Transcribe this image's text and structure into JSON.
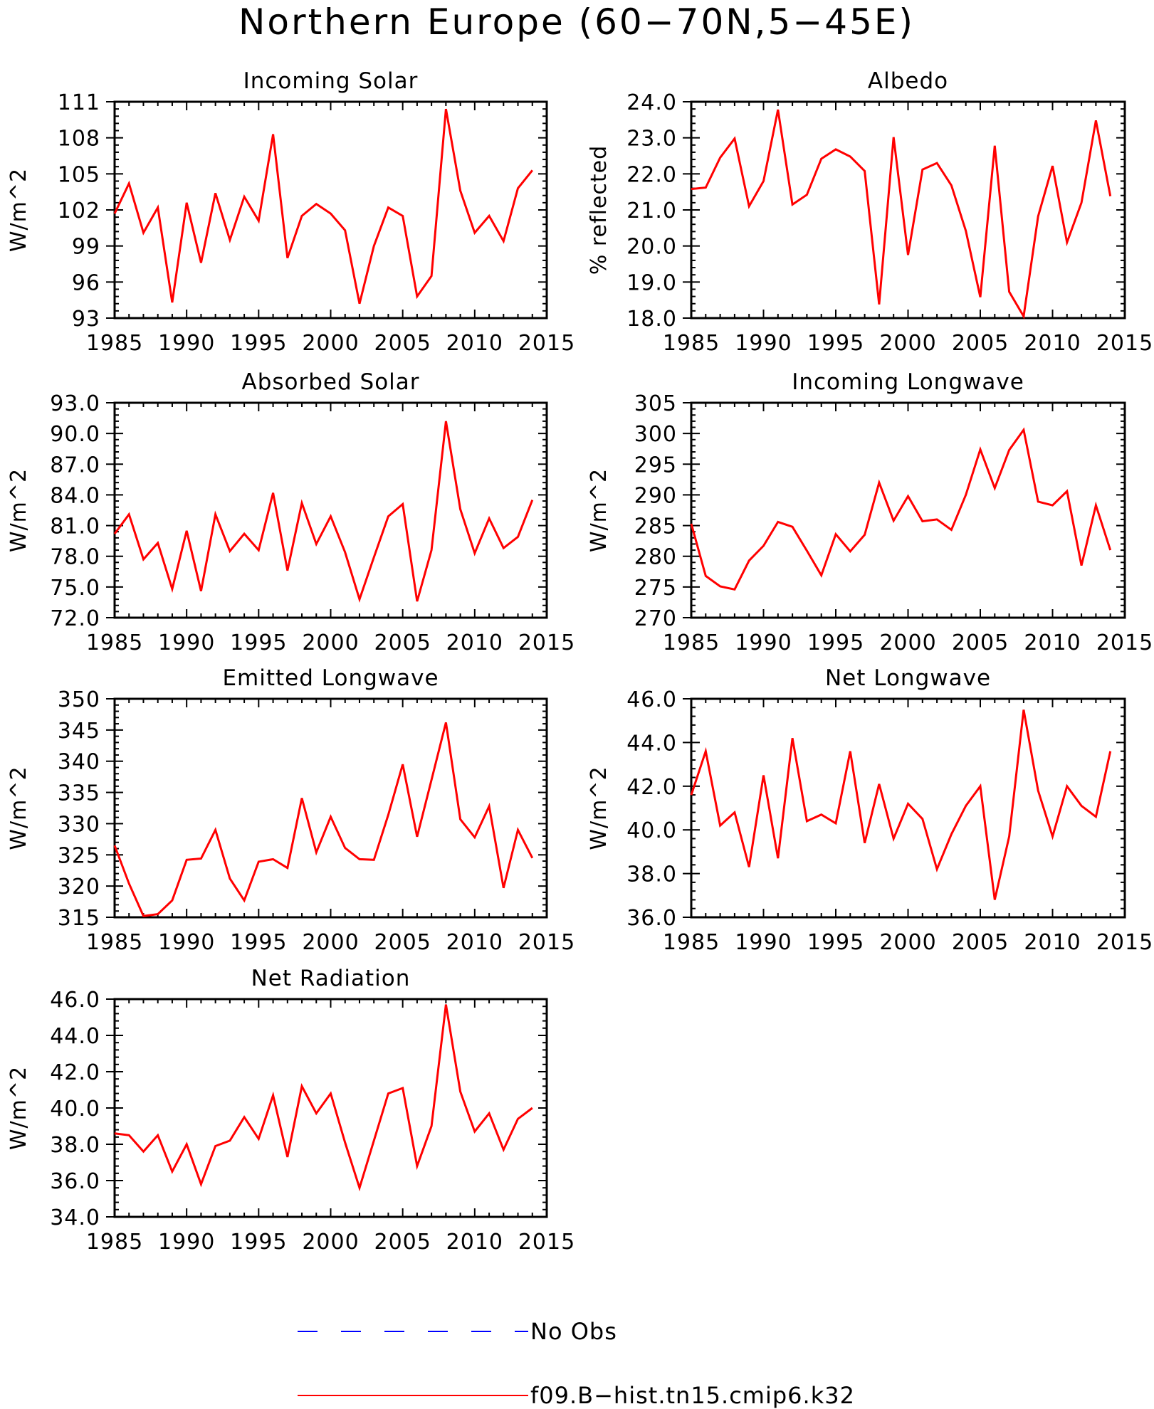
{
  "title": "Northern Europe (60−70N,5−45E)",
  "colors": {
    "model": "#ff0000",
    "obs": "#0000ff",
    "axis": "#000000"
  },
  "legend": {
    "entries": [
      {
        "label": "No Obs",
        "color": "#0000ff",
        "dash": "dashed"
      },
      {
        "label": "f09.B−hist.tn15.cmip6.k32",
        "color": "#ff0000",
        "dash": "solid"
      }
    ]
  },
  "chart_data": [
    {
      "type": "line",
      "title": "Incoming Solar",
      "ylabel": "W/m^2",
      "xlim": [
        1985,
        2015
      ],
      "ylim": [
        93,
        111
      ],
      "xticks": [
        "1985",
        "1990",
        "1995",
        "2000",
        "2005",
        "2010",
        "2015"
      ],
      "yticks": [
        "93",
        "96",
        "99",
        "102",
        "105",
        "108",
        "111"
      ],
      "series": [
        {
          "x": [
            1985,
            1986,
            1987,
            1988,
            1989,
            1990,
            1991,
            1992,
            1993,
            1994,
            1995,
            1996,
            1997,
            1998,
            1999,
            2000,
            2001,
            2002,
            2003,
            2004,
            2005,
            2006,
            2007,
            2008,
            2009,
            2010,
            2011,
            2012,
            2013,
            2014
          ],
          "values": [
            101.7,
            104.2,
            100.1,
            102.2,
            94.3,
            102.6,
            97.6,
            103.4,
            99.5,
            103.1,
            101.1,
            108.3,
            98.0,
            101.5,
            102.5,
            101.7,
            100.3,
            94.2,
            99.0,
            102.2,
            101.5,
            94.8,
            96.5,
            110.4,
            103.6,
            100.1,
            101.5,
            99.4,
            103.8,
            105.3
          ]
        }
      ]
    },
    {
      "type": "line",
      "title": "Albedo",
      "ylabel": "% reflected",
      "xlim": [
        1985,
        2015
      ],
      "ylim": [
        18.0,
        24.0
      ],
      "xticks": [
        "1985",
        "1990",
        "1995",
        "2000",
        "2005",
        "2010",
        "2015"
      ],
      "yticks": [
        "18.0",
        "19.0",
        "20.0",
        "21.0",
        "22.0",
        "23.0",
        "24.0"
      ],
      "series": [
        {
          "x": [
            1985,
            1986,
            1987,
            1988,
            1989,
            1990,
            1991,
            1992,
            1993,
            1994,
            1995,
            1996,
            1997,
            1998,
            1999,
            2000,
            2001,
            2002,
            2003,
            2004,
            2005,
            2006,
            2007,
            2008,
            2009,
            2010,
            2011,
            2012,
            2013,
            2014
          ],
          "values": [
            21.58,
            21.62,
            22.45,
            22.98,
            21.1,
            21.8,
            23.78,
            21.15,
            21.42,
            22.42,
            22.68,
            22.48,
            22.08,
            18.38,
            23.02,
            19.75,
            22.12,
            22.3,
            21.68,
            20.42,
            18.58,
            22.78,
            18.73,
            18.05,
            20.82,
            22.22,
            20.1,
            21.2,
            23.48,
            21.38
          ]
        }
      ]
    },
    {
      "type": "line",
      "title": "Absorbed Solar",
      "ylabel": "W/m^2",
      "xlim": [
        1985,
        2015
      ],
      "ylim": [
        72.0,
        93.0
      ],
      "xticks": [
        "1985",
        "1990",
        "1995",
        "2000",
        "2005",
        "2010",
        "2015"
      ],
      "yticks": [
        "72.0",
        "75.0",
        "78.0",
        "81.0",
        "84.0",
        "87.0",
        "90.0",
        "93.0"
      ],
      "series": [
        {
          "x": [
            1985,
            1986,
            1987,
            1988,
            1989,
            1990,
            1991,
            1992,
            1993,
            1994,
            1995,
            1996,
            1997,
            1998,
            1999,
            2000,
            2001,
            2002,
            2003,
            2004,
            2005,
            2006,
            2007,
            2008,
            2009,
            2010,
            2011,
            2012,
            2013,
            2014
          ],
          "values": [
            80.2,
            82.1,
            77.7,
            79.3,
            74.8,
            80.5,
            74.6,
            82.1,
            78.5,
            80.2,
            78.6,
            84.2,
            76.6,
            83.2,
            79.2,
            81.9,
            78.4,
            73.8,
            77.9,
            81.9,
            83.1,
            73.6,
            78.6,
            91.2,
            82.6,
            78.3,
            81.7,
            78.8,
            79.9,
            83.5
          ]
        }
      ]
    },
    {
      "type": "line",
      "title": "Incoming Longwave",
      "ylabel": "W/m^2",
      "xlim": [
        1985,
        2015
      ],
      "ylim": [
        270,
        305
      ],
      "xticks": [
        "1985",
        "1990",
        "1995",
        "2000",
        "2005",
        "2010",
        "2015"
      ],
      "yticks": [
        "270",
        "275",
        "280",
        "285",
        "290",
        "295",
        "300",
        "305"
      ],
      "series": [
        {
          "x": [
            1985,
            1986,
            1987,
            1988,
            1989,
            1990,
            1991,
            1992,
            1993,
            1994,
            1995,
            1996,
            1997,
            1998,
            1999,
            2000,
            2001,
            2002,
            2003,
            2004,
            2005,
            2006,
            2007,
            2008,
            2009,
            2010,
            2011,
            2012,
            2013,
            2014
          ],
          "values": [
            285.3,
            276.8,
            275.1,
            274.6,
            279.3,
            281.7,
            285.6,
            284.8,
            280.9,
            276.9,
            283.6,
            280.8,
            283.5,
            292.0,
            285.8,
            289.8,
            285.7,
            286.0,
            284.3,
            290.0,
            297.4,
            291.1,
            297.3,
            300.6,
            288.9,
            288.3,
            290.6,
            278.5,
            288.3,
            281.0
          ]
        }
      ]
    },
    {
      "type": "line",
      "title": "Emitted Longwave",
      "ylabel": "W/m^2",
      "xlim": [
        1985,
        2015
      ],
      "ylim": [
        315,
        350
      ],
      "xticks": [
        "1985",
        "1990",
        "1995",
        "2000",
        "2005",
        "2010",
        "2015"
      ],
      "yticks": [
        "315",
        "320",
        "325",
        "330",
        "335",
        "340",
        "345",
        "350"
      ],
      "series": [
        {
          "x": [
            1985,
            1986,
            1987,
            1988,
            1989,
            1990,
            1991,
            1992,
            1993,
            1994,
            1995,
            1996,
            1997,
            1998,
            1999,
            2000,
            2001,
            2002,
            2003,
            2004,
            2005,
            2006,
            2007,
            2008,
            2009,
            2010,
            2011,
            2012,
            2013,
            2014
          ],
          "values": [
            326.5,
            320.4,
            315.2,
            315.5,
            317.7,
            324.2,
            324.4,
            329.0,
            321.2,
            317.7,
            323.9,
            324.3,
            322.9,
            334.1,
            325.4,
            331.1,
            326.1,
            324.3,
            324.2,
            331.4,
            339.5,
            327.9,
            337.0,
            346.2,
            330.7,
            327.8,
            332.8,
            319.7,
            329.0,
            324.5
          ]
        }
      ]
    },
    {
      "type": "line",
      "title": "Net Longwave",
      "ylabel": "W/m^2",
      "xlim": [
        1985,
        2015
      ],
      "ylim": [
        36.0,
        46.0
      ],
      "xticks": [
        "1985",
        "1990",
        "1995",
        "2000",
        "2005",
        "2010",
        "2015"
      ],
      "yticks": [
        "36.0",
        "38.0",
        "40.0",
        "42.0",
        "44.0",
        "46.0"
      ],
      "series": [
        {
          "x": [
            1985,
            1986,
            1987,
            1988,
            1989,
            1990,
            1991,
            1992,
            1993,
            1994,
            1995,
            1996,
            1997,
            1998,
            1999,
            2000,
            2001,
            2002,
            2003,
            2004,
            2005,
            2006,
            2007,
            2008,
            2009,
            2010,
            2011,
            2012,
            2013,
            2014
          ],
          "values": [
            41.6,
            43.6,
            40.2,
            40.8,
            38.3,
            42.5,
            38.7,
            44.2,
            40.4,
            40.7,
            40.3,
            43.6,
            39.4,
            42.1,
            39.6,
            41.2,
            40.5,
            38.2,
            39.8,
            41.1,
            42.0,
            36.8,
            39.7,
            45.5,
            41.8,
            39.7,
            42.0,
            41.1,
            40.6,
            43.6
          ]
        }
      ]
    },
    {
      "type": "line",
      "title": "Net Radiation",
      "ylabel": "W/m^2",
      "xlim": [
        1985,
        2015
      ],
      "ylim": [
        34.0,
        46.0
      ],
      "xticks": [
        "1985",
        "1990",
        "1995",
        "2000",
        "2005",
        "2010",
        "2015"
      ],
      "yticks": [
        "34.0",
        "36.0",
        "38.0",
        "40.0",
        "42.0",
        "44.0",
        "46.0"
      ],
      "series": [
        {
          "x": [
            1985,
            1986,
            1987,
            1988,
            1989,
            1990,
            1991,
            1992,
            1993,
            1994,
            1995,
            1996,
            1997,
            1998,
            1999,
            2000,
            2001,
            2002,
            2003,
            2004,
            2005,
            2006,
            2007,
            2008,
            2009,
            2010,
            2011,
            2012,
            2013,
            2014
          ],
          "values": [
            38.6,
            38.5,
            37.6,
            38.5,
            36.5,
            38.0,
            35.8,
            37.9,
            38.2,
            39.5,
            38.3,
            40.7,
            37.3,
            41.2,
            39.7,
            40.8,
            38.1,
            35.6,
            38.2,
            40.8,
            41.1,
            36.8,
            39.0,
            45.7,
            40.9,
            38.7,
            39.7,
            37.7,
            39.4,
            40.0
          ]
        }
      ]
    }
  ]
}
